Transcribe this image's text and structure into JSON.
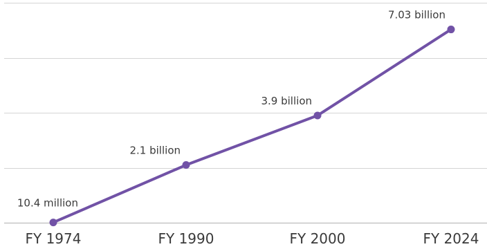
{
  "chart_data": {
    "type": "line",
    "categories": [
      "FY 1974",
      "FY 1990",
      "FY 2000",
      "FY 2024"
    ],
    "series": [
      {
        "values": [
          10400000,
          2100000000,
          3900000000,
          7030000000
        ],
        "data_labels": [
          "10.4 million",
          "2.1 billion",
          "3.9 billion",
          "7.03 billion"
        ]
      }
    ],
    "ylim": [
      0,
      8000000000
    ],
    "grid": true,
    "legend": "none",
    "line_color": "#7152a6",
    "grid_color": "#d4d4d4"
  }
}
